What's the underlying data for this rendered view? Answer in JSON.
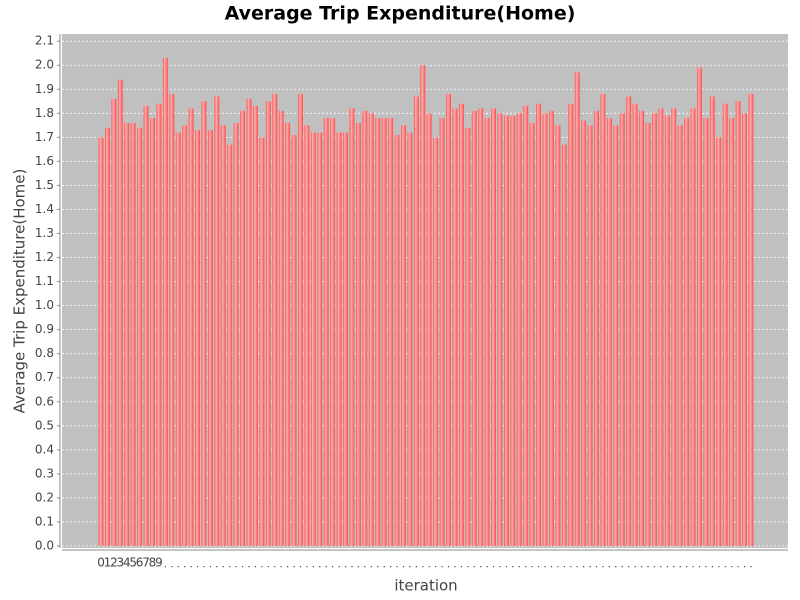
{
  "chart_data": {
    "type": "bar",
    "title": "Average Trip Expenditure(Home)",
    "x_label": "iteration",
    "y_label": "Average Trip Expenditure(Home)",
    "categories": [
      "0",
      "1",
      "2",
      "3",
      "4",
      "5",
      "6",
      "7",
      "8",
      "9",
      null,
      null,
      null,
      null,
      null,
      null,
      null,
      null,
      null,
      null,
      null,
      null,
      null,
      null,
      null,
      null,
      null,
      null,
      null,
      null,
      null,
      null,
      null,
      null,
      null,
      null,
      null,
      null,
      null,
      null,
      null,
      null,
      null,
      null,
      null,
      null,
      null,
      null,
      null,
      null,
      null,
      null,
      null,
      null,
      null,
      null,
      null,
      null,
      null,
      null,
      null,
      null,
      null,
      null,
      null,
      null,
      null,
      null,
      null,
      null,
      null,
      null,
      null,
      null,
      null,
      null,
      null,
      null,
      null,
      null,
      null,
      null,
      null,
      null,
      null,
      null,
      null,
      null,
      null,
      null,
      null,
      null,
      null,
      null,
      null,
      null,
      null,
      null,
      null,
      null,
      null,
      null
    ],
    "values": [
      1.7,
      1.74,
      1.86,
      1.94,
      1.76,
      1.76,
      1.74,
      1.83,
      1.78,
      1.84,
      2.03,
      1.88,
      1.72,
      1.75,
      1.82,
      1.73,
      1.85,
      1.73,
      1.87,
      1.75,
      1.67,
      1.76,
      1.81,
      1.86,
      1.83,
      1.7,
      1.85,
      1.88,
      1.81,
      1.76,
      1.71,
      1.88,
      1.75,
      1.72,
      1.72,
      1.78,
      1.78,
      1.72,
      1.72,
      1.82,
      1.76,
      1.81,
      1.8,
      1.78,
      1.78,
      1.78,
      1.71,
      1.75,
      1.72,
      1.87,
      2.0,
      1.8,
      1.7,
      1.78,
      1.88,
      1.82,
      1.84,
      1.74,
      1.81,
      1.82,
      1.78,
      1.82,
      1.8,
      1.79,
      1.79,
      1.8,
      1.83,
      1.76,
      1.84,
      1.8,
      1.81,
      1.75,
      1.67,
      1.84,
      1.97,
      1.77,
      1.75,
      1.81,
      1.88,
      1.78,
      1.75,
      1.8,
      1.87,
      1.84,
      1.81,
      1.76,
      1.8,
      1.82,
      1.79,
      1.82,
      1.75,
      1.78,
      1.82,
      1.99,
      1.78,
      1.87,
      1.7,
      1.84,
      1.78,
      1.85,
      1.8,
      1.88
    ],
    "color": "#ff5555",
    "ylim": [
      0,
      2.13
    ],
    "yticks": [
      {
        "value": 0,
        "label": "0.0"
      },
      0.1,
      0.2,
      0.3,
      0.4,
      0.5,
      0.6,
      0.7,
      0.8,
      0.9,
      {
        "value": 1,
        "label": "1.0"
      },
      1.1,
      1.2,
      1.3,
      1.4,
      1.5,
      1.6,
      1.7,
      1.8,
      1.9,
      {
        "value": 2,
        "label": "2.0"
      },
      2.1
    ],
    "grid": true
  }
}
